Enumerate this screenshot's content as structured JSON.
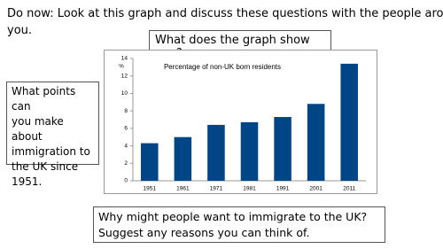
{
  "header": {
    "lines": [
      "Do now: Look at this graph and discuss these questions with the people around",
      "you."
    ]
  },
  "question_top": "What does the graph show you?",
  "question_left": {
    "lines": [
      "What points can",
      "you make about",
      "immigration to",
      "the UK since",
      "1951."
    ]
  },
  "question_bottom": {
    "lines": [
      "Why might people want to immigrate to the UK?",
      "Suggest any reasons you can think of."
    ]
  },
  "chart_data": {
    "type": "bar",
    "title": "Percentage of non-UK born residents",
    "y_label": "%",
    "categories": [
      "1951",
      "1961",
      "1971",
      "1981",
      "1991",
      "2001",
      "2011"
    ],
    "values": [
      4.3,
      5.0,
      6.4,
      6.7,
      7.3,
      8.8,
      13.4
    ],
    "color": "#004586",
    "ylim": [
      0,
      14
    ],
    "yticks": [
      0,
      2,
      4,
      6,
      8,
      10,
      12,
      14
    ],
    "grid": false
  }
}
